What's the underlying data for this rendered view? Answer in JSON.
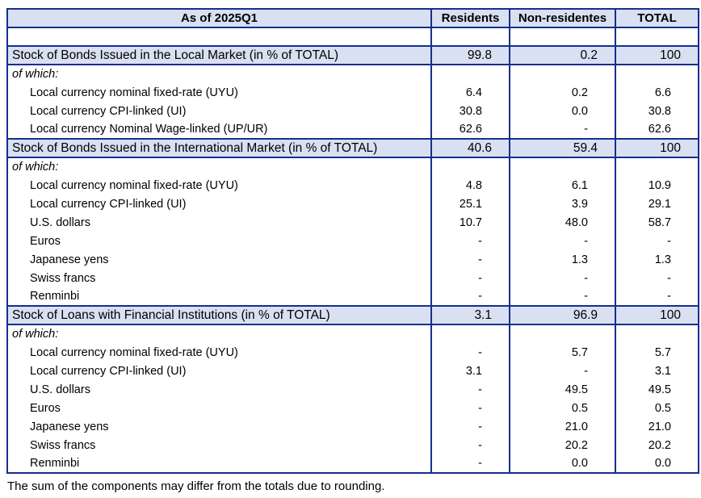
{
  "chart_data": {
    "type": "table",
    "title": "As of 2025Q1",
    "columns": [
      "Residents",
      "Non-residentes",
      "TOTAL"
    ],
    "rows": [
      {
        "type": "empty",
        "label": "",
        "values": [
          "",
          "",
          ""
        ]
      },
      {
        "type": "section",
        "label": "Stock of Bonds Issued in the Local Market (in % of TOTAL)",
        "values": [
          "99.8",
          "0.2",
          "100"
        ]
      },
      {
        "type": "ofwhich",
        "label": "of which:",
        "values": [
          "",
          "",
          ""
        ]
      },
      {
        "type": "detail",
        "label": "Local currency nominal fixed-rate (UYU)",
        "values": [
          "6.4",
          "0.2",
          "6.6"
        ]
      },
      {
        "type": "detail",
        "label": "Local currency CPI-linked (UI)",
        "values": [
          "30.8",
          "0.0",
          "30.8"
        ]
      },
      {
        "type": "detail",
        "label": "Local currency Nominal Wage-linked (UP/UR)",
        "values": [
          "62.6",
          "-",
          "62.6"
        ]
      },
      {
        "type": "section",
        "label": "Stock of Bonds Issued in the International Market (in % of TOTAL)",
        "values": [
          "40.6",
          "59.4",
          "100"
        ]
      },
      {
        "type": "ofwhich",
        "label": "of which:",
        "values": [
          "",
          "",
          ""
        ]
      },
      {
        "type": "detail",
        "label": "Local currency nominal fixed-rate (UYU)",
        "values": [
          "4.8",
          "6.1",
          "10.9"
        ]
      },
      {
        "type": "detail",
        "label": "Local currency CPI-linked (UI)",
        "values": [
          "25.1",
          "3.9",
          "29.1"
        ]
      },
      {
        "type": "detail",
        "label": "U.S. dollars",
        "values": [
          "10.7",
          "48.0",
          "58.7"
        ]
      },
      {
        "type": "detail",
        "label": "Euros",
        "values": [
          "-",
          "-",
          "-"
        ]
      },
      {
        "type": "detail",
        "label": "Japanese yens",
        "values": [
          "-",
          "1.3",
          "1.3"
        ]
      },
      {
        "type": "detail",
        "label": "Swiss francs",
        "values": [
          "-",
          "-",
          "-"
        ]
      },
      {
        "type": "detail",
        "label": "Renminbi",
        "values": [
          "-",
          "-",
          "-"
        ]
      },
      {
        "type": "section",
        "label": "Stock of Loans with Financial Institutions (in % of TOTAL)",
        "values": [
          "3.1",
          "96.9",
          "100"
        ]
      },
      {
        "type": "ofwhich",
        "label": "of which:",
        "values": [
          "",
          "",
          ""
        ]
      },
      {
        "type": "detail",
        "label": "Local currency nominal fixed-rate (UYU)",
        "values": [
          "-",
          "5.7",
          "5.7"
        ]
      },
      {
        "type": "detail",
        "label": "Local currency CPI-linked (UI)",
        "values": [
          "3.1",
          "-",
          "3.1"
        ]
      },
      {
        "type": "detail",
        "label": "U.S. dollars",
        "values": [
          "-",
          "49.5",
          "49.5"
        ]
      },
      {
        "type": "detail",
        "label": "Euros",
        "values": [
          "-",
          "0.5",
          "0.5"
        ]
      },
      {
        "type": "detail",
        "label": "Japanese yens",
        "values": [
          "-",
          "21.0",
          "21.0"
        ]
      },
      {
        "type": "detail",
        "label": "Swiss francs",
        "values": [
          "-",
          "20.2",
          "20.2"
        ]
      },
      {
        "type": "detail",
        "label": "Renminbi",
        "values": [
          "-",
          "0.0",
          "0.0"
        ]
      }
    ],
    "footnote": "The sum of the components may differ from the totals due to rounding.",
    "layout": {
      "grid": "vertical column dividers on all rows; horizontal rules only on header, section rows and table edges",
      "legend_position": "none",
      "highlight_fill": "#D9E0F2"
    }
  },
  "colors": {
    "border": "#142F8F",
    "header_fill": "#D9E0F2",
    "section_fill": "#D9E0F2",
    "text": "#000000",
    "background": "#FFFFFF"
  }
}
